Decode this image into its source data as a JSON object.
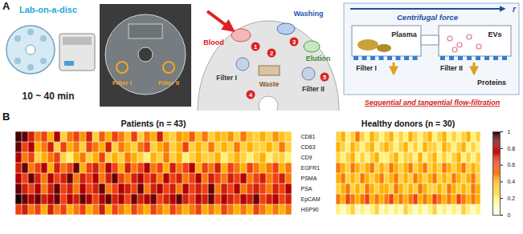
{
  "diagram": {
    "panel_label": "A",
    "disc_photo": {
      "title": "Lab-on-a-disc",
      "time": "10 ~ 40 min"
    },
    "chip_photo": {
      "labels": [
        "Filter I",
        "Filter II"
      ]
    },
    "disc_layout": {
      "inlet": "Blood",
      "washing": "Washing",
      "elution": "Elution",
      "filter_1": "Filter I",
      "filter_2": "Filter II",
      "waste": "Waste",
      "steps": [
        1,
        2,
        3,
        4,
        5
      ]
    },
    "filtration": {
      "force": "Centrifugal force",
      "axis": "r",
      "plasma": "Plasma",
      "filter_1": "Filter I",
      "filter_2": "Filter II",
      "vesicles": "EVs",
      "proteins": "Proteins",
      "caption": "Sequential and tangential flow-filtration"
    }
  },
  "chart_data": [
    {
      "type": "heatmap",
      "panel_label": "B",
      "title": "Patients (n = 43)",
      "tick_labels": "y",
      "rows": [
        "CD81",
        "CD63",
        "CD9",
        "EGFR1",
        "PSMA",
        "PSA",
        "EpCAM",
        "HSP90"
      ],
      "cells": [
        [
          0.95,
          0.9,
          0.7,
          0.5,
          0.6,
          0.4,
          0.8,
          0.3,
          0.5,
          0.6,
          0.45,
          0.7,
          0.3,
          0.55,
          0.4,
          0.6,
          0.5,
          0.35,
          0.6,
          0.3,
          0.5,
          0.4,
          0.7,
          0.35,
          0.3,
          0.45,
          0.4,
          0.55,
          0.35,
          0.5,
          0.3,
          0.4,
          0.35,
          0.45,
          0.3,
          0.5,
          0.35,
          0.3,
          0.4,
          0.3,
          0.45,
          0.35,
          0.3
        ],
        [
          0.9,
          0.6,
          0.8,
          0.4,
          0.5,
          0.7,
          0.3,
          0.6,
          0.4,
          0.5,
          0.3,
          0.6,
          0.5,
          0.4,
          0.7,
          0.3,
          0.5,
          0.4,
          0.3,
          0.5,
          0.6,
          0.3,
          0.4,
          0.5,
          0.3,
          0.4,
          0.6,
          0.3,
          0.4,
          0.3,
          0.5,
          0.3,
          0.4,
          0.3,
          0.5,
          0.3,
          0.4,
          0.3,
          0.3,
          0.4,
          0.3,
          0.5,
          0.3
        ],
        [
          0.8,
          0.5,
          0.6,
          0.3,
          0.4,
          0.5,
          0.6,
          0.3,
          0.2,
          0.4,
          0.5,
          0.3,
          0.4,
          0.6,
          0.3,
          0.4,
          0.3,
          0.5,
          0.4,
          0.3,
          0.2,
          0.4,
          0.3,
          0.5,
          0.3,
          0.4,
          0.2,
          0.3,
          0.4,
          0.3,
          0.3,
          0.4,
          0.2,
          0.3,
          0.4,
          0.3,
          0.2,
          0.3,
          0.4,
          0.2,
          0.3,
          0.3,
          0.2
        ],
        [
          0.7,
          0.9,
          0.5,
          0.6,
          0.8,
          0.4,
          0.7,
          0.5,
          0.6,
          0.9,
          0.4,
          0.6,
          0.7,
          0.5,
          0.8,
          0.6,
          0.4,
          0.7,
          0.5,
          0.6,
          0.8,
          0.5,
          0.6,
          0.4,
          0.7,
          0.5,
          0.6,
          0.8,
          0.4,
          0.6,
          0.5,
          0.7,
          0.4,
          0.6,
          0.5,
          0.4,
          0.6,
          0.5,
          0.4,
          0.5,
          0.6,
          0.4,
          0.5
        ],
        [
          0.8,
          0.6,
          0.9,
          0.7,
          0.5,
          0.8,
          0.6,
          0.7,
          0.9,
          0.5,
          0.7,
          0.6,
          0.8,
          0.5,
          0.7,
          0.9,
          0.6,
          0.5,
          0.7,
          0.8,
          0.6,
          0.7,
          0.5,
          0.8,
          0.6,
          0.7,
          0.5,
          0.6,
          0.8,
          0.5,
          0.7,
          0.6,
          0.5,
          0.7,
          0.6,
          0.8,
          0.5,
          0.6,
          0.7,
          0.5,
          0.6,
          0.7,
          0.5
        ],
        [
          0.9,
          0.7,
          0.6,
          0.8,
          0.5,
          0.7,
          0.9,
          0.6,
          0.7,
          0.5,
          0.8,
          0.6,
          0.7,
          0.9,
          0.5,
          0.6,
          0.8,
          0.7,
          0.6,
          0.9,
          0.5,
          0.7,
          0.8,
          0.6,
          0.7,
          0.5,
          0.8,
          0.6,
          0.7,
          0.6,
          0.9,
          0.5,
          0.7,
          0.6,
          0.8,
          0.5,
          0.6,
          0.7,
          0.6,
          0.5,
          0.7,
          0.6,
          0.8
        ],
        [
          1,
          0.9,
          0.8,
          0.9,
          0.7,
          0.8,
          0.9,
          0.6,
          0.8,
          0.7,
          0.9,
          0.8,
          0.6,
          0.8,
          0.9,
          0.7,
          0.8,
          0.6,
          0.9,
          0.7,
          0.8,
          0.9,
          0.6,
          0.7,
          0.8,
          0.9,
          0.7,
          0.6,
          0.8,
          0.7,
          0.9,
          0.6,
          0.8,
          0.7,
          0.6,
          0.8,
          0.7,
          0.9,
          0.6,
          0.7,
          0.8,
          0.6,
          0.7
        ],
        [
          0.6,
          0.7,
          0.5,
          0.6,
          0.4,
          0.7,
          0.5,
          0.6,
          0.4,
          0.5,
          0.6,
          0.4,
          0.5,
          0.7,
          0.4,
          0.6,
          0.5,
          0.4,
          0.6,
          0.5,
          0.4,
          0.6,
          0.5,
          0.4,
          0.6,
          0.5,
          0.4,
          0.5,
          0.6,
          0.4,
          0.5,
          0.4,
          0.6,
          0.5,
          0.4,
          0.5,
          0.4,
          0.6,
          0.5,
          0.4,
          0.5,
          0.4,
          0.5
        ]
      ]
    },
    {
      "type": "heatmap",
      "title": "Healthy donors (n = 30)",
      "tick_labels": false,
      "rows": [
        "CD81",
        "CD63",
        "CD9",
        "EGFR1",
        "PSMA",
        "PSA",
        "EpCAM",
        "HSP90"
      ],
      "cells": [
        [
          0.3,
          0.4,
          0.2,
          0.3,
          0.5,
          0.3,
          0.2,
          0.4,
          0.3,
          0.2,
          0.3,
          0.4,
          0.2,
          0.3,
          0.2,
          0.4,
          0.3,
          0.2,
          0.3,
          0.4,
          0.2,
          0.3,
          0.4,
          0.2,
          0.3,
          0.2,
          0.3,
          0.4,
          0.2,
          0.3
        ],
        [
          0.4,
          0.3,
          0.2,
          0.4,
          0.3,
          0.2,
          0.3,
          0.4,
          0.2,
          0.3,
          0.4,
          0.3,
          0.2,
          0.3,
          0.4,
          0.2,
          0.3,
          0.2,
          0.4,
          0.3,
          0.3,
          0.2,
          0.4,
          0.3,
          0.2,
          0.3,
          0.4,
          0.2,
          0.3,
          0.2
        ],
        [
          0.3,
          0.2,
          0.3,
          0.4,
          0.2,
          0.3,
          0.2,
          0.3,
          0.4,
          0.2,
          0.2,
          0.3,
          0.4,
          0.2,
          0.3,
          0.3,
          0.2,
          0.4,
          0.2,
          0.3,
          0.4,
          0.2,
          0.3,
          0.2,
          0.3,
          0.4,
          0.2,
          0.3,
          0.2,
          0.3
        ],
        [
          0.5,
          0.4,
          0.3,
          0.5,
          0.4,
          0.3,
          0.4,
          0.5,
          0.3,
          0.4,
          0.3,
          0.5,
          0.4,
          0.3,
          0.4,
          0.5,
          0.3,
          0.4,
          0.5,
          0.3,
          0.4,
          0.3,
          0.5,
          0.4,
          0.3,
          0.4,
          0.5,
          0.3,
          0.4,
          0.3
        ],
        [
          0.4,
          0.5,
          0.3,
          0.4,
          0.3,
          0.5,
          0.4,
          0.3,
          0.4,
          0.5,
          0.3,
          0.4,
          0.5,
          0.3,
          0.4,
          0.3,
          0.5,
          0.4,
          0.3,
          0.4,
          0.5,
          0.3,
          0.4,
          0.3,
          0.5,
          0.4,
          0.3,
          0.4,
          0.5,
          0.3
        ],
        [
          0.3,
          0.4,
          0.5,
          0.3,
          0.4,
          0.3,
          0.5,
          0.4,
          0.3,
          0.4,
          0.4,
          0.3,
          0.5,
          0.4,
          0.3,
          0.4,
          0.3,
          0.5,
          0.4,
          0.3,
          0.3,
          0.4,
          0.3,
          0.5,
          0.4,
          0.3,
          0.4,
          0.3,
          0.5,
          0.4
        ],
        [
          0.5,
          0.4,
          0.6,
          0.5,
          0.4,
          0.5,
          0.6,
          0.4,
          0.5,
          0.4,
          0.5,
          0.6,
          0.4,
          0.5,
          0.4,
          0.5,
          0.6,
          0.4,
          0.5,
          0.4,
          0.6,
          0.5,
          0.4,
          0.5,
          0.4,
          0.6,
          0.5,
          0.4,
          0.5,
          0.4
        ],
        [
          0.2,
          0.1,
          0.2,
          0.3,
          0.1,
          0.2,
          0.1,
          0.2,
          0.3,
          0.1,
          0.2,
          0.1,
          0.2,
          0.1,
          0.3,
          0.2,
          0.1,
          0.2,
          0.1,
          0.2,
          0.3,
          0.1,
          0.2,
          0.1,
          0.2,
          0.1,
          0.3,
          0.2,
          0.1,
          0.2
        ]
      ],
      "colorbar": {
        "range": [
          0,
          1
        ],
        "ticks": [
          0,
          0.2,
          0.4,
          0.6,
          0.8,
          1
        ]
      }
    }
  ]
}
